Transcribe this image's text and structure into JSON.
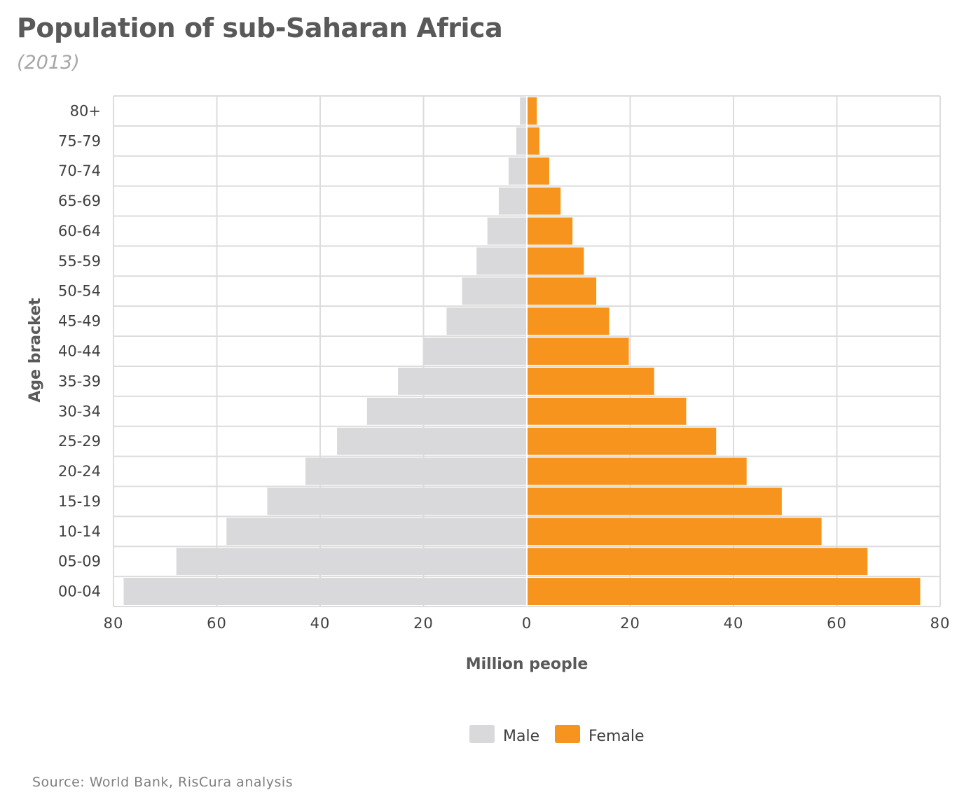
{
  "header": {
    "title": "Population of sub-Saharan Africa",
    "subtitle": "(2013)"
  },
  "footer": {
    "source": "Source: World Bank, RisCura analysis"
  },
  "colors": {
    "male": "#d9d9db",
    "female": "#f7941d",
    "grid": "#dcdcdc"
  },
  "chart_data": {
    "type": "bar",
    "orientation": "horizontal",
    "layout": "population-pyramid",
    "categories": [
      "80+",
      "75-79",
      "70-74",
      "65-69",
      "60-64",
      "55-59",
      "50-54",
      "45-49",
      "40-44",
      "35-39",
      "30-34",
      "25-29",
      "20-24",
      "15-19",
      "10-14",
      "05-09",
      "00-04"
    ],
    "series": [
      {
        "name": "Male",
        "values": [
          1.2,
          1.9,
          3.4,
          5.3,
          7.5,
          9.6,
          12.4,
          15.4,
          19.8,
          24.8,
          30.8,
          36.6,
          42.7,
          50.1,
          58.0,
          67.7,
          77.9
        ]
      },
      {
        "name": "Female",
        "values": [
          1.8,
          2.3,
          4.2,
          6.4,
          8.7,
          10.9,
          13.3,
          15.8,
          19.6,
          24.5,
          30.7,
          36.5,
          42.4,
          49.2,
          56.9,
          65.8,
          76.0
        ]
      }
    ],
    "xlabel": "Million people",
    "ylabel": "Age bracket",
    "xlim": [
      -80,
      80
    ],
    "xticks": [
      "80",
      "60",
      "40",
      "20",
      "0",
      "20",
      "40",
      "60",
      "80"
    ],
    "grid": true,
    "legend": "bottom"
  }
}
